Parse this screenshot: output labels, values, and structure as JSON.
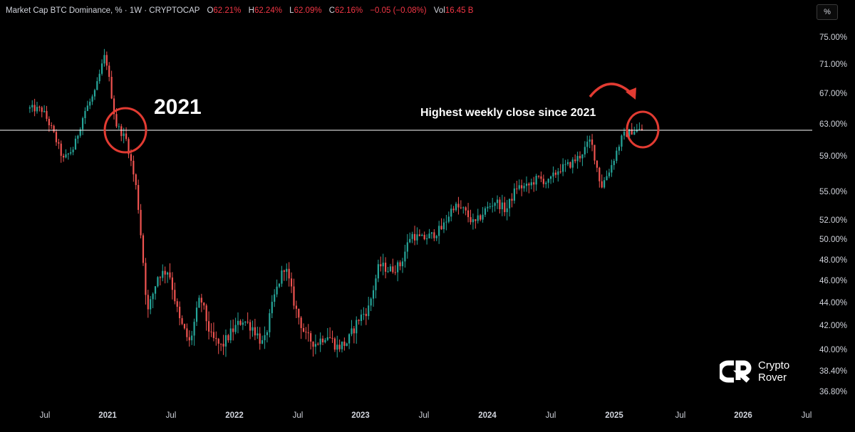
{
  "header": {
    "symbol": "Market Cap BTC Dominance, % · 1W · CRYPTOCAP",
    "open_label": "O",
    "open_value": "62.21%",
    "high_label": "H",
    "high_value": "62.24%",
    "low_label": "L",
    "low_value": "62.09%",
    "close_label": "C",
    "close_value": "62.16%",
    "change": "−0.05 (−0.08%)",
    "vol_label": "Vol",
    "vol_value": "16.45 B"
  },
  "scale_button": "%",
  "annotations": {
    "year_label": "2021",
    "highlight_text": "Highest weekly close since 2021"
  },
  "logo": {
    "line1": "Crypto",
    "line2": "Rover"
  },
  "colors": {
    "up": "#26a69a",
    "down": "#ef5350",
    "marker": "#f23645",
    "hline": "#ffffff",
    "background": "#000000"
  },
  "chart_data": {
    "type": "candlestick",
    "title": "Market Cap BTC Dominance, %",
    "interval": "1W",
    "y_scale": "log",
    "ylim": [
      36.0,
      77.5
    ],
    "y_ticks": [
      "75.00%",
      "71.00%",
      "67.00%",
      "63.00%",
      "59.00%",
      "55.00%",
      "52.00%",
      "50.00%",
      "48.00%",
      "46.00%",
      "44.00%",
      "42.00%",
      "40.00%",
      "38.40%",
      "36.80%"
    ],
    "x_ticks": [
      "Jul",
      "2021",
      "Jul",
      "2022",
      "Jul",
      "2023",
      "Jul",
      "2024",
      "Jul",
      "2025",
      "Jul",
      "2026",
      "Jul"
    ],
    "horizontal_line": 62.2,
    "price_path": [
      [
        "2020-06",
        65.0
      ],
      [
        "2020-07",
        64.8
      ],
      [
        "2020-08",
        62.0
      ],
      [
        "2020-09",
        58.5
      ],
      [
        "2020-10",
        60.0
      ],
      [
        "2020-11",
        64.5
      ],
      [
        "2020-12",
        67.0
      ],
      [
        "2021-01",
        72.5
      ],
      [
        "2021-02",
        63.0
      ],
      [
        "2021-03",
        61.0
      ],
      [
        "2021-04",
        55.0
      ],
      [
        "2021-05",
        43.0
      ],
      [
        "2021-06",
        46.5
      ],
      [
        "2021-07",
        47.0
      ],
      [
        "2021-08",
        42.5
      ],
      [
        "2021-09",
        40.5
      ],
      [
        "2021-10",
        44.5
      ],
      [
        "2021-11",
        41.0
      ],
      [
        "2021-12",
        40.2
      ],
      [
        "2022-01",
        41.5
      ],
      [
        "2022-02",
        42.5
      ],
      [
        "2022-03",
        41.8
      ],
      [
        "2022-04",
        40.3
      ],
      [
        "2022-05",
        44.5
      ],
      [
        "2022-06",
        47.5
      ],
      [
        "2022-07",
        43.5
      ],
      [
        "2022-08",
        41.0
      ],
      [
        "2022-09",
        40.5
      ],
      [
        "2022-10",
        41.3
      ],
      [
        "2022-11",
        40.2
      ],
      [
        "2022-12",
        40.6
      ],
      [
        "2023-01",
        42.5
      ],
      [
        "2023-02",
        43.5
      ],
      [
        "2023-03",
        47.5
      ],
      [
        "2023-04",
        47.0
      ],
      [
        "2023-05",
        47.5
      ],
      [
        "2023-06",
        50.5
      ],
      [
        "2023-07",
        50.0
      ],
      [
        "2023-08",
        50.4
      ],
      [
        "2023-09",
        51.2
      ],
      [
        "2023-10",
        53.5
      ],
      [
        "2023-11",
        53.0
      ],
      [
        "2023-12",
        51.5
      ],
      [
        "2024-01",
        53.0
      ],
      [
        "2024-02",
        54.0
      ],
      [
        "2024-03",
        53.0
      ],
      [
        "2024-04",
        55.5
      ],
      [
        "2024-05",
        55.5
      ],
      [
        "2024-06",
        56.5
      ],
      [
        "2024-07",
        56.0
      ],
      [
        "2024-08",
        57.5
      ],
      [
        "2024-09",
        58.0
      ],
      [
        "2024-10",
        59.0
      ],
      [
        "2024-11",
        61.0
      ],
      [
        "2024-12",
        55.5
      ],
      [
        "2025-01",
        58.0
      ],
      [
        "2025-02",
        61.5
      ],
      [
        "2025-03",
        62.2
      ]
    ]
  }
}
